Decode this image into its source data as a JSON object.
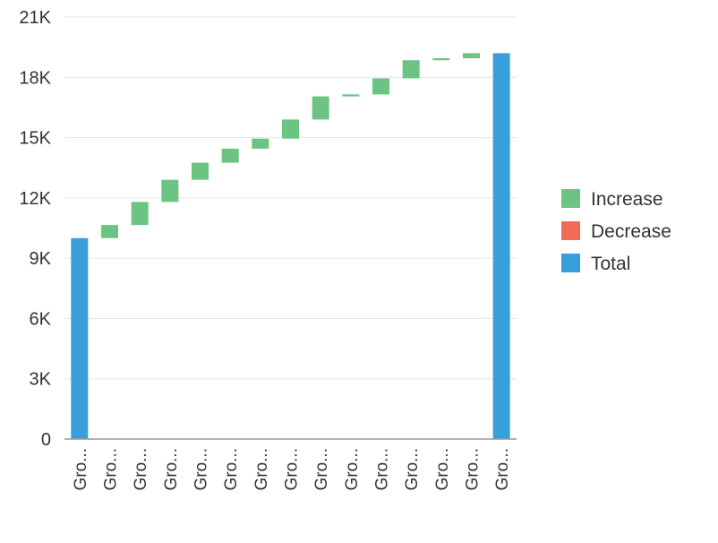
{
  "chart_data": {
    "type": "waterfall",
    "title": "",
    "xlabel": "",
    "ylabel": "",
    "ylim": [
      0,
      21000
    ],
    "yticks": [
      0,
      3000,
      6000,
      9000,
      12000,
      15000,
      18000,
      21000
    ],
    "ytick_labels": [
      "0",
      "3K",
      "6K",
      "9K",
      "12K",
      "15K",
      "18K",
      "21K"
    ],
    "grid": true,
    "legend_position": "right",
    "categories": [
      "Gro...",
      "Gro...",
      "Gro...",
      "Gro...",
      "Gro...",
      "Gro...",
      "Gro...",
      "Gro...",
      "Gro...",
      "Gro...",
      "Gro...",
      "Gro...",
      "Gro...",
      "Gro...",
      "Gro..."
    ],
    "bars": [
      {
        "kind": "total",
        "start": 0,
        "end": 10000
      },
      {
        "kind": "increase",
        "start": 10000,
        "end": 10650
      },
      {
        "kind": "increase",
        "start": 10650,
        "end": 11800
      },
      {
        "kind": "increase",
        "start": 11800,
        "end": 12900
      },
      {
        "kind": "increase",
        "start": 12900,
        "end": 13750
      },
      {
        "kind": "increase",
        "start": 13750,
        "end": 14450
      },
      {
        "kind": "increase",
        "start": 14450,
        "end": 14950
      },
      {
        "kind": "increase",
        "start": 14950,
        "end": 15900
      },
      {
        "kind": "increase",
        "start": 15900,
        "end": 17050
      },
      {
        "kind": "increase",
        "start": 17050,
        "end": 17150
      },
      {
        "kind": "increase",
        "start": 17150,
        "end": 17950
      },
      {
        "kind": "increase",
        "start": 17950,
        "end": 18850
      },
      {
        "kind": "increase",
        "start": 18850,
        "end": 18950
      },
      {
        "kind": "increase",
        "start": 18950,
        "end": 19200
      },
      {
        "kind": "total",
        "start": 0,
        "end": 19200
      }
    ],
    "legend": [
      {
        "key": "increase",
        "label": "Increase",
        "color": "#6cc483"
      },
      {
        "key": "decrease",
        "label": "Decrease",
        "color": "#ee6b55"
      },
      {
        "key": "total",
        "label": "Total",
        "color": "#389fdb"
      }
    ]
  }
}
